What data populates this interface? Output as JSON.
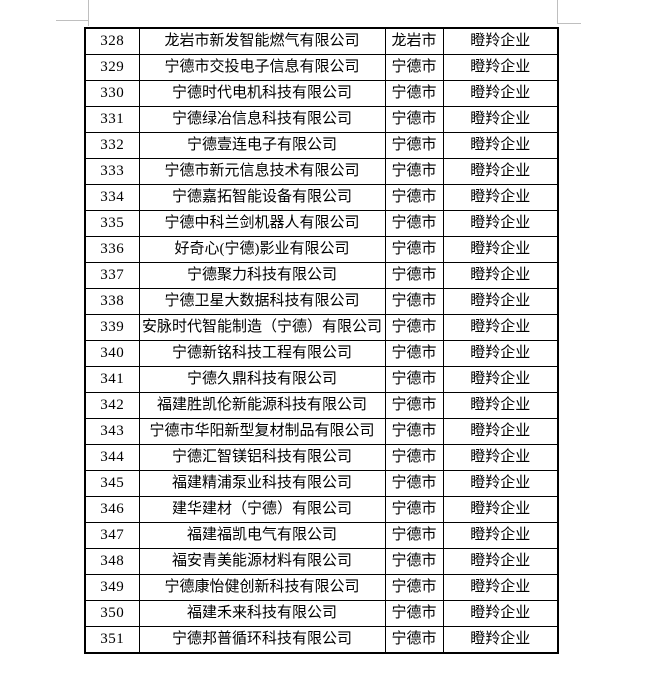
{
  "document": {
    "background": "#ffffff",
    "table_border_color": "#000000",
    "text_color": "#000000",
    "crop_mark_color": "#bfbfbf"
  },
  "table": {
    "rows": [
      {
        "no": "328",
        "company": "龙岩市新发智能燃气有限公司",
        "city": "龙岩市",
        "category": "瞪羚企业"
      },
      {
        "no": "329",
        "company": "宁德市交投电子信息有限公司",
        "city": "宁德市",
        "category": "瞪羚企业"
      },
      {
        "no": "330",
        "company": "宁德时代电机科技有限公司",
        "city": "宁德市",
        "category": "瞪羚企业"
      },
      {
        "no": "331",
        "company": "宁德绿冶信息科技有限公司",
        "city": "宁德市",
        "category": "瞪羚企业"
      },
      {
        "no": "332",
        "company": "宁德壹连电子有限公司",
        "city": "宁德市",
        "category": "瞪羚企业"
      },
      {
        "no": "333",
        "company": "宁德市新元信息技术有限公司",
        "city": "宁德市",
        "category": "瞪羚企业"
      },
      {
        "no": "334",
        "company": "宁德嘉拓智能设备有限公司",
        "city": "宁德市",
        "category": "瞪羚企业"
      },
      {
        "no": "335",
        "company": "宁德中科兰剑机器人有限公司",
        "city": "宁德市",
        "category": "瞪羚企业"
      },
      {
        "no": "336",
        "company": "好奇心(宁德)影业有限公司",
        "city": "宁德市",
        "category": "瞪羚企业"
      },
      {
        "no": "337",
        "company": "宁德聚力科技有限公司",
        "city": "宁德市",
        "category": "瞪羚企业"
      },
      {
        "no": "338",
        "company": "宁德卫星大数据科技有限公司",
        "city": "宁德市",
        "category": "瞪羚企业"
      },
      {
        "no": "339",
        "company": "安脉时代智能制造（宁德）有限公司",
        "city": "宁德市",
        "category": "瞪羚企业"
      },
      {
        "no": "340",
        "company": "宁德新铭科技工程有限公司",
        "city": "宁德市",
        "category": "瞪羚企业"
      },
      {
        "no": "341",
        "company": "宁德久鼎科技有限公司",
        "city": "宁德市",
        "category": "瞪羚企业"
      },
      {
        "no": "342",
        "company": "福建胜凯伦新能源科技有限公司",
        "city": "宁德市",
        "category": "瞪羚企业"
      },
      {
        "no": "343",
        "company": "宁德市华阳新型复材制品有限公司",
        "city": "宁德市",
        "category": "瞪羚企业"
      },
      {
        "no": "344",
        "company": "宁德汇智镁铝科技有限公司",
        "city": "宁德市",
        "category": "瞪羚企业"
      },
      {
        "no": "345",
        "company": "福建精浦泵业科技有限公司",
        "city": "宁德市",
        "category": "瞪羚企业"
      },
      {
        "no": "346",
        "company": "建华建材（宁德）有限公司",
        "city": "宁德市",
        "category": "瞪羚企业"
      },
      {
        "no": "347",
        "company": "福建福凯电气有限公司",
        "city": "宁德市",
        "category": "瞪羚企业"
      },
      {
        "no": "348",
        "company": "福安青美能源材料有限公司",
        "city": "宁德市",
        "category": "瞪羚企业"
      },
      {
        "no": "349",
        "company": "宁德康怡健创新科技有限公司",
        "city": "宁德市",
        "category": "瞪羚企业"
      },
      {
        "no": "350",
        "company": "福建禾来科技有限公司",
        "city": "宁德市",
        "category": "瞪羚企业"
      },
      {
        "no": "351",
        "company": "宁德邦普循环科技有限公司",
        "city": "宁德市",
        "category": "瞪羚企业"
      }
    ]
  }
}
